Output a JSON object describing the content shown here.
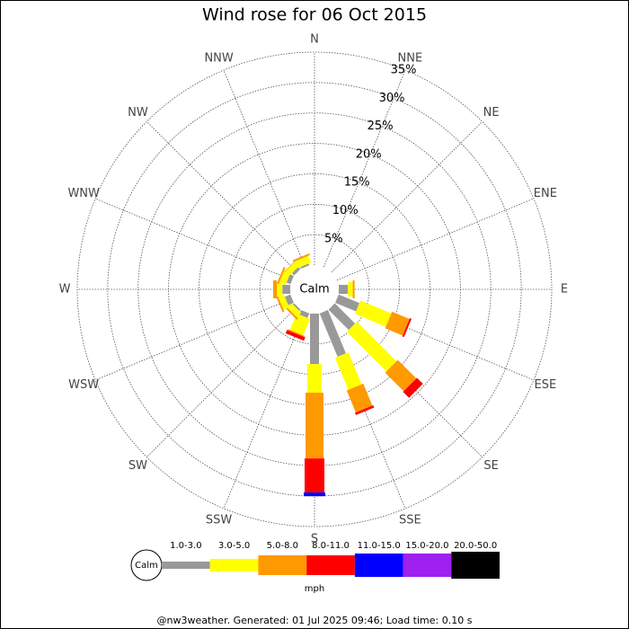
{
  "chart_data": {
    "type": "windrose",
    "title": "Wind rose for 06 Oct 2015",
    "directions": [
      "N",
      "NNE",
      "NE",
      "ENE",
      "E",
      "ESE",
      "SE",
      "SSE",
      "S",
      "SSW",
      "SW",
      "WSW",
      "W",
      "WNW",
      "NW",
      "NNW"
    ],
    "calm_label": "Calm",
    "rlim": [
      0,
      35
    ],
    "rticks": [
      {
        "value": 5,
        "label": "5%"
      },
      {
        "value": 10,
        "label": "10%"
      },
      {
        "value": 15,
        "label": "15%"
      },
      {
        "value": 20,
        "label": "20%"
      },
      {
        "value": 25,
        "label": "25%"
      },
      {
        "value": 30,
        "label": "30%"
      },
      {
        "value": 35,
        "label": "35%"
      }
    ],
    "series": [
      {
        "name": "1.0-3.0",
        "color": "#999999",
        "values": [
          0,
          0,
          0,
          0,
          1.5,
          3.7,
          4.7,
          7.7,
          8.3,
          0.8,
          0.3,
          1.0,
          1.3,
          0.7,
          0.5,
          0.3
        ]
      },
      {
        "name": "3.0-5.0",
        "color": "#ffff00",
        "values": [
          0,
          0,
          0,
          0,
          0.8,
          5.5,
          9.2,
          5.7,
          4.7,
          2.9,
          1.0,
          1.0,
          0.9,
          1.1,
          1.0,
          1.2
        ]
      },
      {
        "name": "5.0-8.0",
        "color": "#ff9900",
        "values": [
          0,
          0,
          0,
          0,
          0.3,
          3.1,
          4.3,
          3.9,
          10.8,
          0.2,
          0.3,
          0.3,
          0.6,
          0.3,
          0.1,
          0.3
        ]
      },
      {
        "name": "8.0-11.0",
        "color": "#ff0000",
        "values": [
          0,
          0,
          0,
          0,
          0,
          0.3,
          1.4,
          0.4,
          5.6,
          0.6,
          0,
          0,
          0,
          0,
          0,
          0
        ]
      },
      {
        "name": "11.0-15.0",
        "color": "#0000ff",
        "values": [
          0,
          0,
          0,
          0,
          0,
          0,
          0,
          0,
          0.6,
          0,
          0,
          0,
          0,
          0,
          0,
          0
        ]
      },
      {
        "name": "15.0-20.0",
        "color": "#a020f0",
        "values": [
          0,
          0,
          0,
          0,
          0,
          0,
          0,
          0,
          0,
          0,
          0,
          0,
          0,
          0,
          0,
          0
        ]
      },
      {
        "name": "20.0-50.0",
        "color": "#000000",
        "values": [
          0,
          0,
          0,
          0,
          0,
          0,
          0,
          0,
          0,
          0,
          0,
          0,
          0,
          0,
          0,
          0
        ]
      }
    ],
    "legend_unit": "mph",
    "footer": "@nw3weather. Generated: 01 Jul 2025 09:46; Load time: 0.10 s"
  }
}
